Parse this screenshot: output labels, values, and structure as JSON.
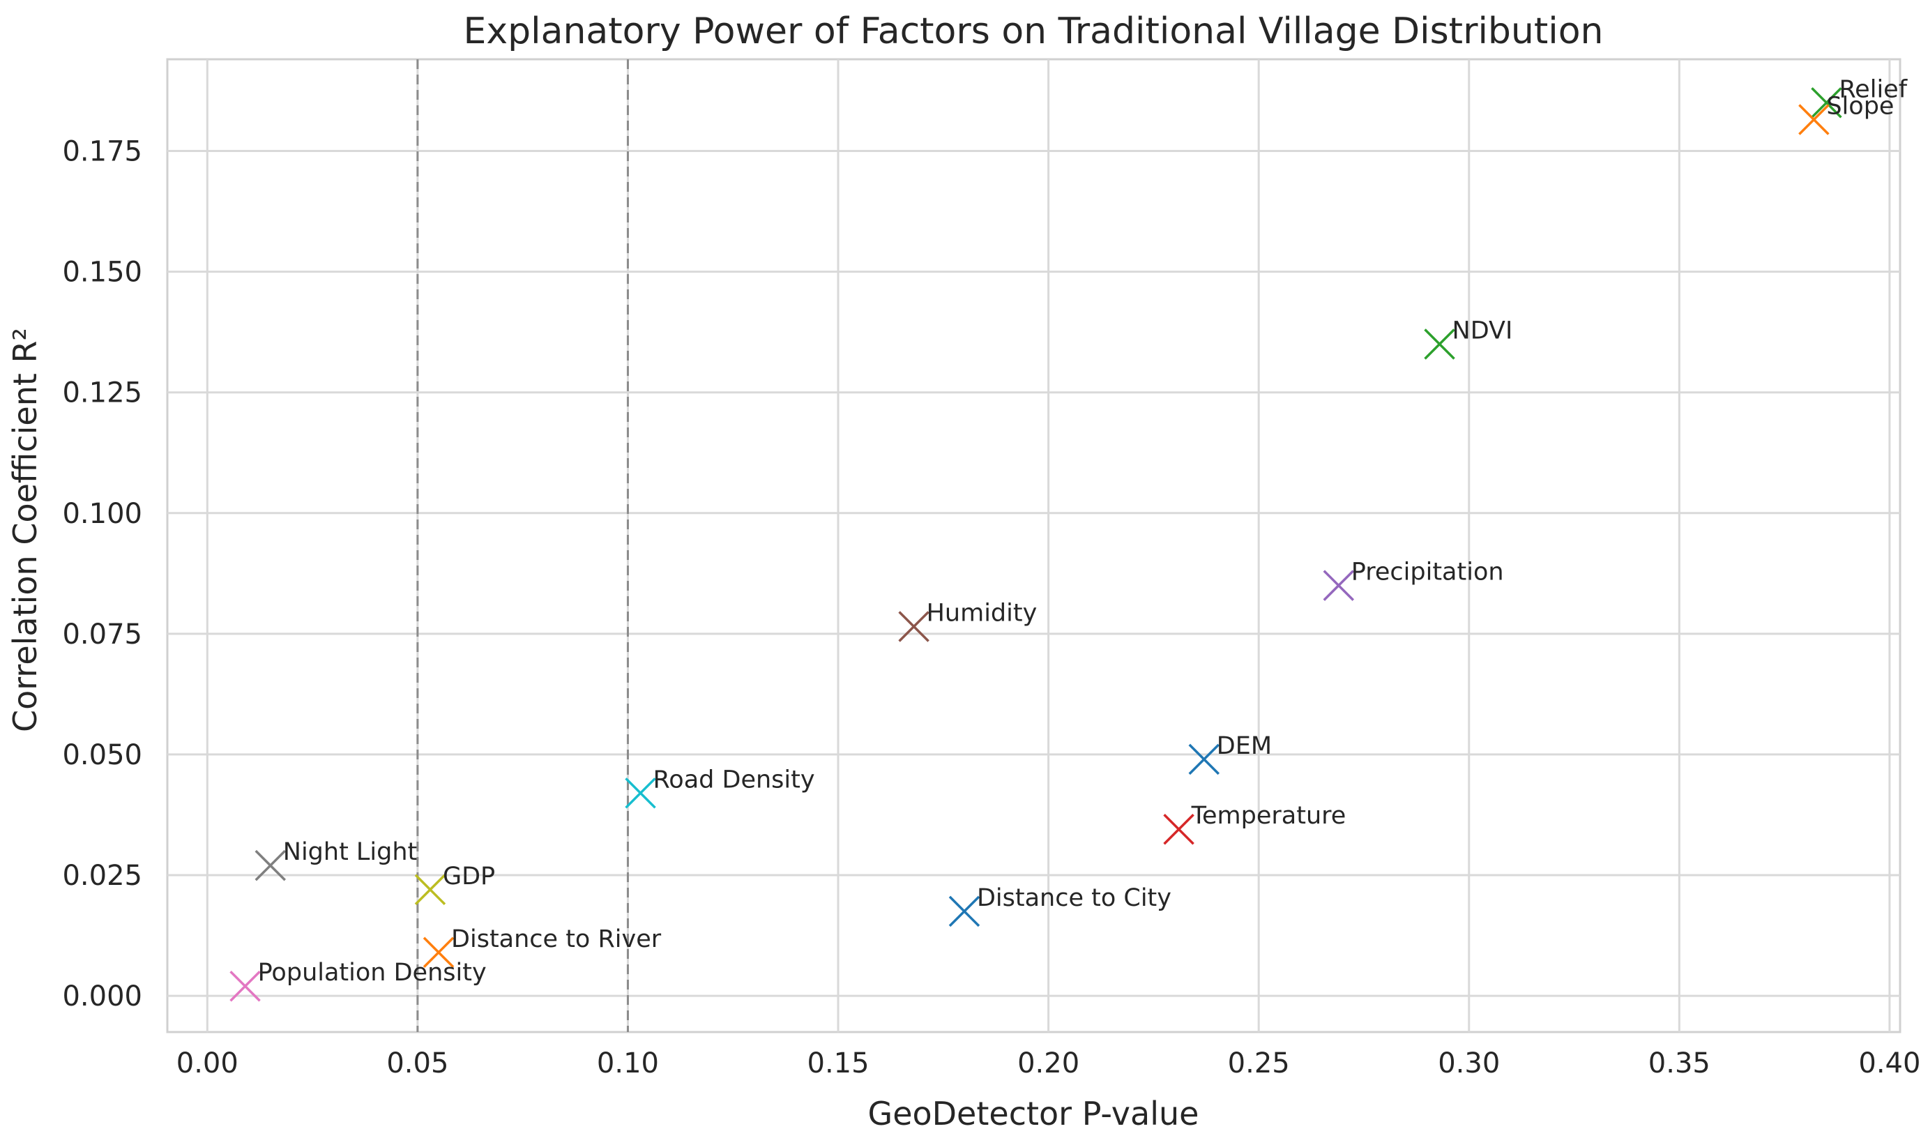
{
  "chart_data": {
    "type": "scatter",
    "title": "Explanatory Power of Factors on Traditional Village Distribution",
    "xlabel": "GeoDetector P-value",
    "ylabel": "Correlation Coefficient R²",
    "xlim": [
      -0.0095,
      0.4025
    ],
    "ylim": [
      -0.0075,
      0.194
    ],
    "x_ticks": [
      0.0,
      0.05,
      0.1,
      0.15,
      0.2,
      0.25,
      0.3,
      0.35,
      0.4
    ],
    "x_tick_labels": [
      "0.00",
      "0.05",
      "0.10",
      "0.15",
      "0.20",
      "0.25",
      "0.30",
      "0.35",
      "0.40"
    ],
    "y_ticks": [
      0.0,
      0.025,
      0.05,
      0.075,
      0.1,
      0.125,
      0.15,
      0.175
    ],
    "y_tick_labels": [
      "0.000",
      "0.025",
      "0.050",
      "0.075",
      "0.100",
      "0.125",
      "0.150",
      "0.175"
    ],
    "grid": true,
    "marker": "x",
    "vertical_lines": [
      0.05,
      0.1
    ],
    "points": [
      {
        "label": "Night Light",
        "x": 0.015,
        "y": 0.027,
        "color": "#7f7f7f"
      },
      {
        "label": "GDP",
        "x": 0.053,
        "y": 0.022,
        "color": "#bcbd22"
      },
      {
        "label": "Distance to River",
        "x": 0.055,
        "y": 0.009,
        "color": "#ff7f0e"
      },
      {
        "label": "Population Density",
        "x": 0.009,
        "y": 0.002,
        "color": "#e377c2"
      },
      {
        "label": "Road Density",
        "x": 0.103,
        "y": 0.042,
        "color": "#17becf"
      },
      {
        "label": "Humidity",
        "x": 0.168,
        "y": 0.0765,
        "color": "#8c564b"
      },
      {
        "label": "Distance to City",
        "x": 0.18,
        "y": 0.0175,
        "color": "#1f77b4"
      },
      {
        "label": "Temperature",
        "x": 0.231,
        "y": 0.0345,
        "color": "#d62728"
      },
      {
        "label": "DEM",
        "x": 0.237,
        "y": 0.049,
        "color": "#1f77b4"
      },
      {
        "label": "Precipitation",
        "x": 0.269,
        "y": 0.085,
        "color": "#9467bd"
      },
      {
        "label": "NDVI",
        "x": 0.293,
        "y": 0.135,
        "color": "#2ca02c"
      },
      {
        "label": "Relief",
        "x": 0.385,
        "y": 0.185,
        "color": "#2ca02c"
      },
      {
        "label": "Slope",
        "x": 0.382,
        "y": 0.1815,
        "color": "#ff7f0e"
      }
    ]
  }
}
